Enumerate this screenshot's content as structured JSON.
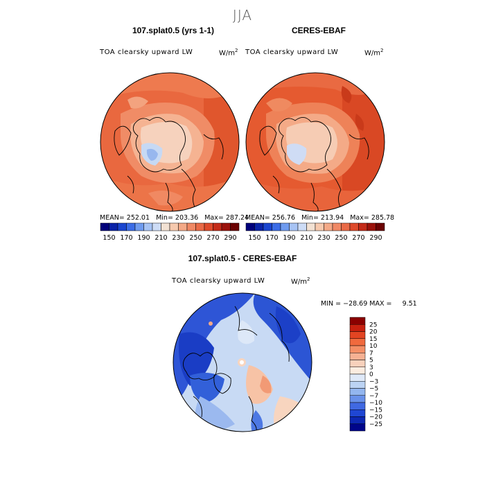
{
  "season": "JJA",
  "panels": [
    {
      "title": "107.splat0.5 (yrs 1-1)",
      "variable": "TOA clearsky upward LW",
      "units": "W/m",
      "units_exp": "2",
      "mean": "MEAN= 252.01",
      "min": "Min= 203.36",
      "max": "Max= 287.24"
    },
    {
      "title": "CERES-EBAF",
      "variable": "TOA clearsky upward LW",
      "units": "W/m",
      "units_exp": "2",
      "mean": "MEAN= 256.76",
      "min": "Min= 213.94",
      "max": "Max= 285.78"
    }
  ],
  "abs_colorbar": {
    "colors": [
      "#00007a",
      "#0a23a8",
      "#1a45cf",
      "#3b6ce6",
      "#6f9bef",
      "#a7c3f4",
      "#cddcf6",
      "#f2e1d3",
      "#f6c9ae",
      "#f4a987",
      "#f08965",
      "#e96a47",
      "#de4a2b",
      "#c42b18",
      "#9b120b",
      "#6b0303"
    ],
    "labels": [
      "150",
      "170",
      "190",
      "210",
      "230",
      "250",
      "270",
      "290"
    ]
  },
  "diff": {
    "title": "107.splat0.5 - CERES-EBAF",
    "variable": "TOA clearsky upward LW",
    "units": "W/m",
    "units_exp": "2",
    "minmax": "MIN = −28.69 MAX =     9.51"
  },
  "diff_colorbar": {
    "colors": [
      "#8b0000",
      "#c8200f",
      "#e24422",
      "#f06a3d",
      "#f48f66",
      "#f6b193",
      "#f8d1bc",
      "#fbece0",
      "#dfe9f8",
      "#bcd3f3",
      "#93b6ef",
      "#6991ea",
      "#4069e2",
      "#1f46d3",
      "#0d27b3",
      "#00058a"
    ],
    "labels": [
      "25",
      "20",
      "15",
      "10",
      "7",
      "5",
      "3",
      "0",
      "−3",
      "−5",
      "−7",
      "−10",
      "−15",
      "−20",
      "−25"
    ]
  }
}
